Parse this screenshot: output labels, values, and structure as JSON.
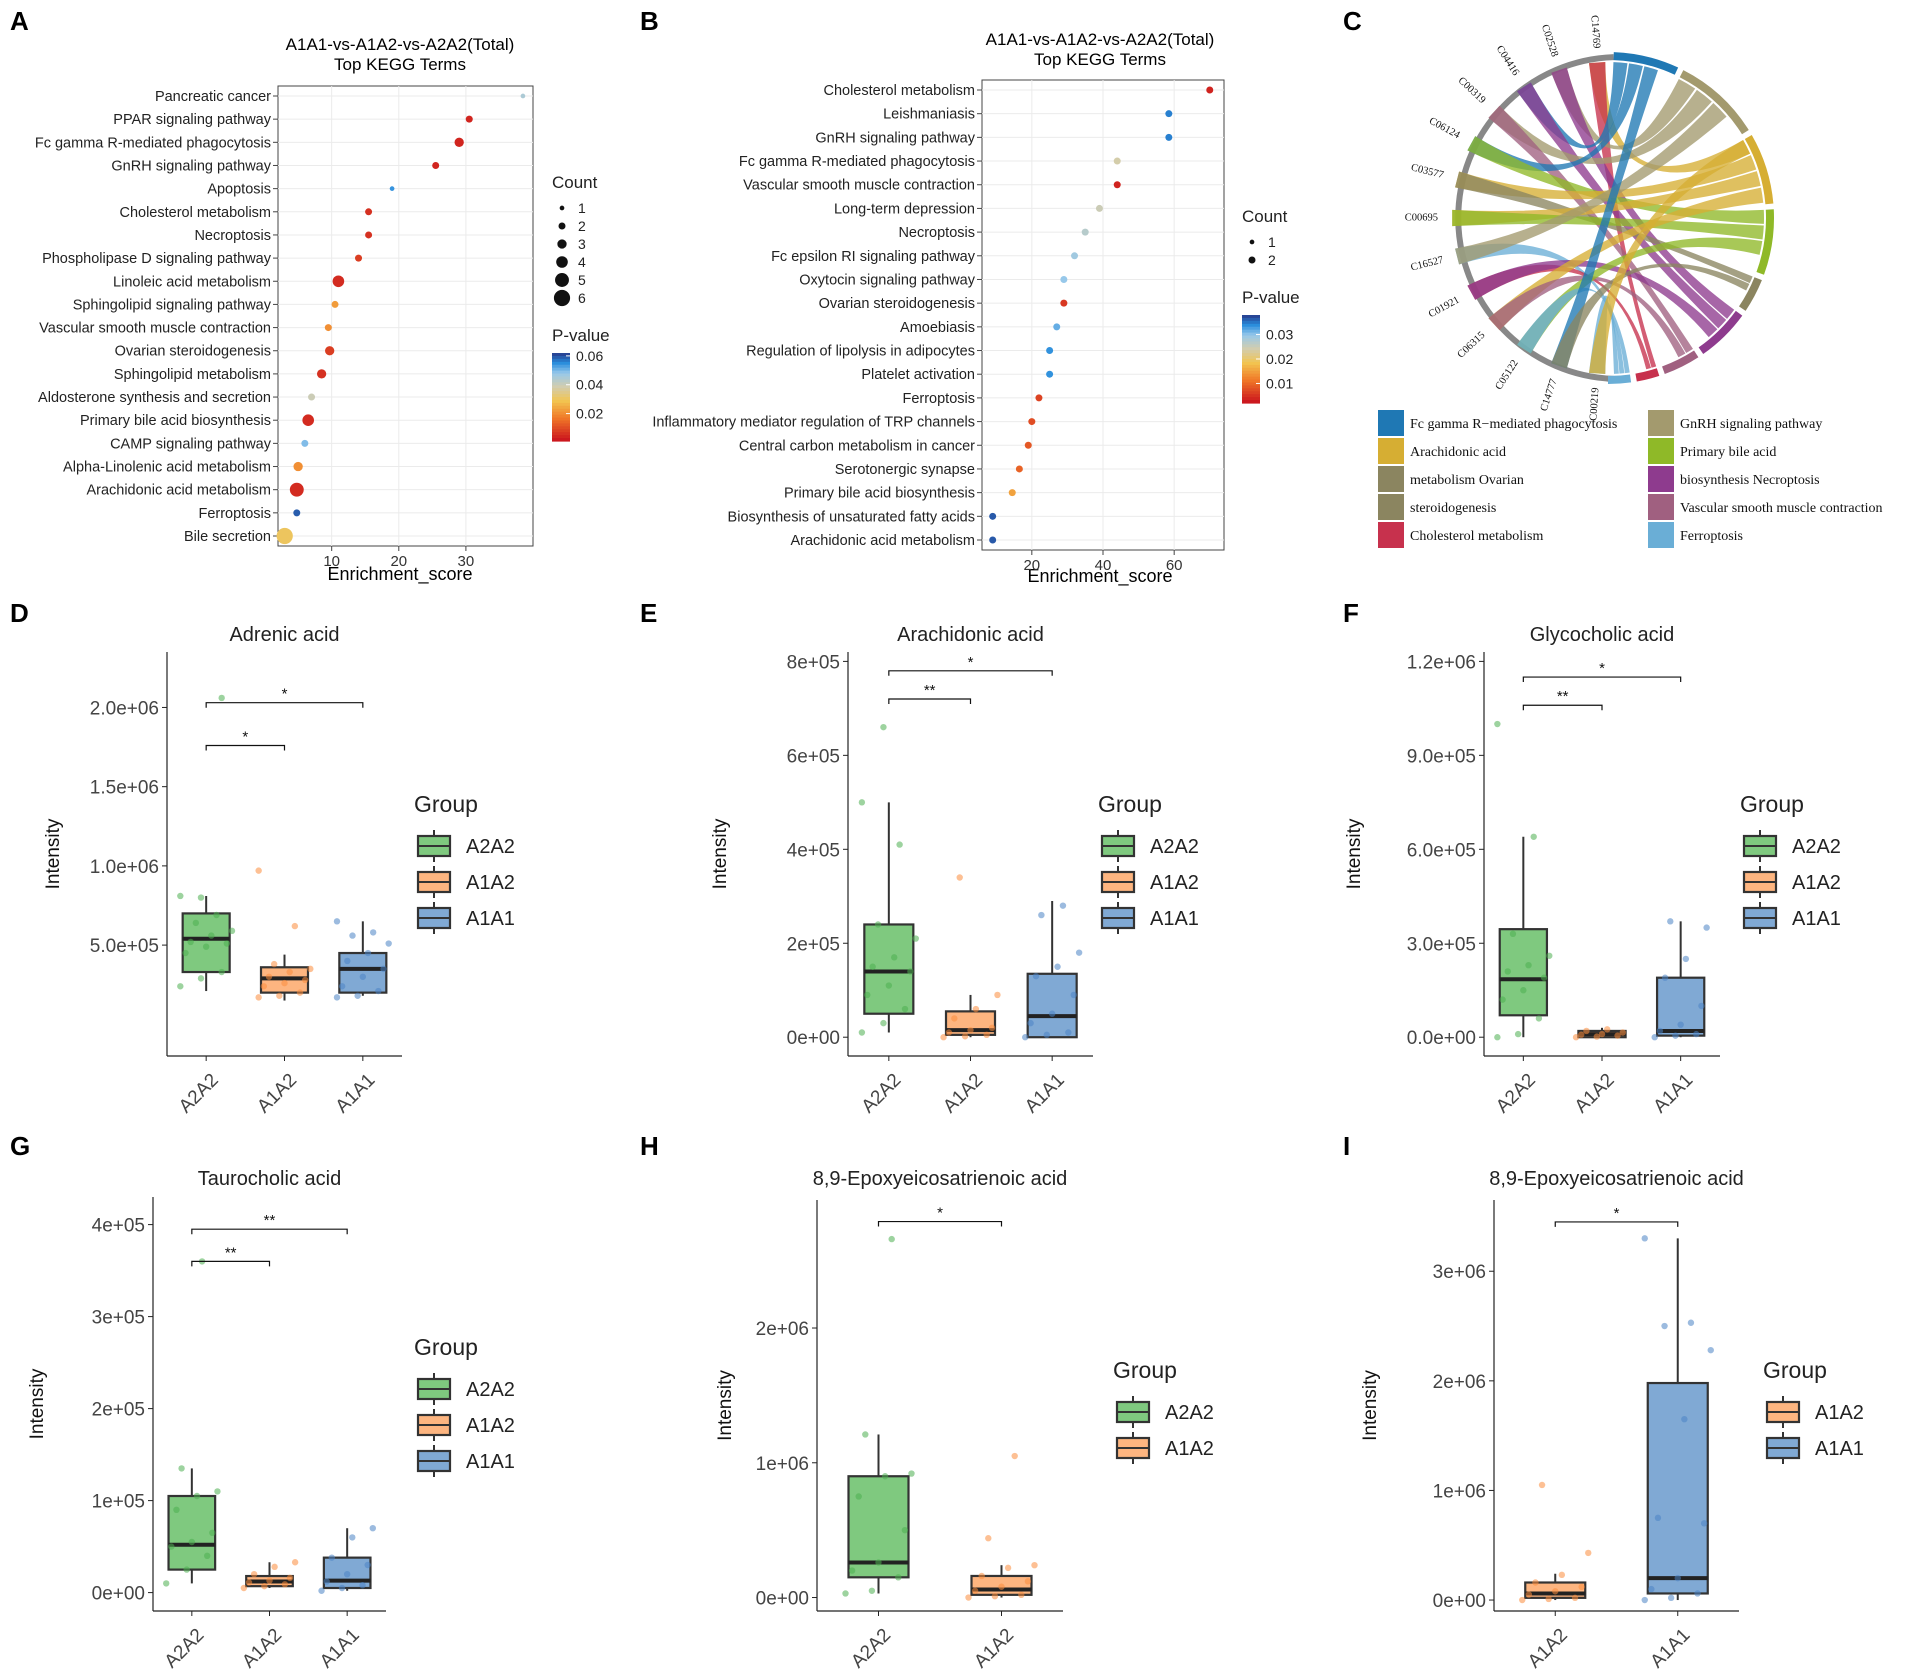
{
  "colors": {
    "A2A2": "#7fc97f",
    "A1A2": "#fdb580",
    "A1A1": "#80a9d4",
    "A2A2_dot": "#4caf50",
    "A1A2_dot": "#fb8c3c",
    "A1A1_dot": "#4a84c4",
    "grid": "#ebebeb",
    "box_line": "#333333",
    "sig": "#000000"
  },
  "chart_data": [
    {
      "panel": "A",
      "type": "scatter",
      "title": "A1A1-vs-A1A2-vs-A2A2(Total)",
      "subtitle": "Top KEGG Terms",
      "xlabel": "Enrichment_score",
      "xlim": [
        2,
        40
      ],
      "xticks": [
        10,
        20,
        30
      ],
      "legend": {
        "count_title": "Count",
        "count_values": [
          1,
          2,
          3,
          4,
          5,
          6
        ],
        "pvalue_title": "P-value",
        "pvalue_ticks": [
          "0.06",
          "0.04",
          "0.02"
        ],
        "pvalue_range": [
          0.001,
          0.062
        ]
      },
      "terms": [
        {
          "name": "Pancreatic cancer",
          "x": 38.5,
          "count": 1,
          "p": 0.045
        },
        {
          "name": "PPAR signaling pathway",
          "x": 30.5,
          "count": 2,
          "p": 0.003
        },
        {
          "name": "Fc gamma R-mediated phagocytosis",
          "x": 29.0,
          "count": 3,
          "p": 0.003
        },
        {
          "name": "GnRH signaling pathway",
          "x": 25.5,
          "count": 2,
          "p": 0.003
        },
        {
          "name": "Apoptosis",
          "x": 19.0,
          "count": 1,
          "p": 0.055
        },
        {
          "name": "Cholesterol metabolism",
          "x": 15.5,
          "count": 2,
          "p": 0.005
        },
        {
          "name": "Necroptosis",
          "x": 15.5,
          "count": 2,
          "p": 0.005
        },
        {
          "name": "Phospholipase D signaling pathway",
          "x": 14.0,
          "count": 2,
          "p": 0.007
        },
        {
          "name": "Linoleic acid metabolism",
          "x": 11.0,
          "count": 4,
          "p": 0.004
        },
        {
          "name": "Sphingolipid signaling pathway",
          "x": 10.5,
          "count": 2,
          "p": 0.022
        },
        {
          "name": "Vascular smooth muscle contraction",
          "x": 9.5,
          "count": 2,
          "p": 0.02
        },
        {
          "name": "Ovarian steroidogenesis",
          "x": 9.7,
          "count": 3,
          "p": 0.007
        },
        {
          "name": "Sphingolipid metabolism",
          "x": 8.5,
          "count": 3,
          "p": 0.005
        },
        {
          "name": "Aldosterone synthesis and secretion",
          "x": 7.0,
          "count": 2,
          "p": 0.04
        },
        {
          "name": "Primary bile acid biosynthesis",
          "x": 6.5,
          "count": 4,
          "p": 0.004
        },
        {
          "name": "CAMP signaling pathway",
          "x": 6.0,
          "count": 2,
          "p": 0.05
        },
        {
          "name": "Alpha-Linolenic acid metabolism",
          "x": 5.0,
          "count": 3,
          "p": 0.02
        },
        {
          "name": "Arachidonic acid metabolism",
          "x": 4.8,
          "count": 5,
          "p": 0.004
        },
        {
          "name": "Ferroptosis",
          "x": 4.8,
          "count": 2,
          "p": 0.06
        },
        {
          "name": "Bile secretion",
          "x": 3.0,
          "count": 6,
          "p": 0.03
        }
      ]
    },
    {
      "panel": "B",
      "type": "scatter",
      "title": "A1A1-vs-A1A2-vs-A2A2(Total)",
      "subtitle": "Top KEGG Terms",
      "xlabel": "Enrichment_score",
      "xlim": [
        6,
        74
      ],
      "xticks": [
        20,
        40,
        60
      ],
      "legend": {
        "count_title": "Count",
        "count_values": [
          1,
          2
        ],
        "pvalue_title": "P-value",
        "pvalue_ticks": [
          "0.03",
          "0.02",
          "0.01"
        ],
        "pvalue_range": [
          0.002,
          0.038
        ]
      },
      "terms": [
        {
          "name": "Cholesterol metabolism",
          "x": 70,
          "count": 2,
          "p": 0.003
        },
        {
          "name": "Leishmaniasis",
          "x": 58.5,
          "count": 2,
          "p": 0.035
        },
        {
          "name": "GnRH signaling pathway",
          "x": 58.5,
          "count": 2,
          "p": 0.035
        },
        {
          "name": "Fc gamma R-mediated phagocytosis",
          "x": 44,
          "count": 2,
          "p": 0.024
        },
        {
          "name": "Vascular smooth muscle contraction",
          "x": 44,
          "count": 2,
          "p": 0.003
        },
        {
          "name": "Long-term depression",
          "x": 39,
          "count": 2,
          "p": 0.025
        },
        {
          "name": "Necroptosis",
          "x": 35,
          "count": 2,
          "p": 0.027
        },
        {
          "name": "Fc epsilon RI signaling pathway",
          "x": 32,
          "count": 2,
          "p": 0.029
        },
        {
          "name": "Oxytocin signaling pathway",
          "x": 29,
          "count": 2,
          "p": 0.03
        },
        {
          "name": "Ovarian steroidogenesis",
          "x": 29,
          "count": 2,
          "p": 0.005
        },
        {
          "name": "Amoebiasis",
          "x": 27,
          "count": 2,
          "p": 0.032
        },
        {
          "name": "Regulation of lipolysis in adipocytes",
          "x": 25,
          "count": 2,
          "p": 0.034
        },
        {
          "name": "Platelet activation",
          "x": 25,
          "count": 2,
          "p": 0.034
        },
        {
          "name": "Ferroptosis",
          "x": 22,
          "count": 2,
          "p": 0.006
        },
        {
          "name": "Inflammatory mediator regulation of TRP channels",
          "x": 20,
          "count": 2,
          "p": 0.007
        },
        {
          "name": "Central carbon metabolism in cancer",
          "x": 19,
          "count": 2,
          "p": 0.008
        },
        {
          "name": "Serotonergic synapse",
          "x": 16.5,
          "count": 2,
          "p": 0.009
        },
        {
          "name": "Primary bile acid biosynthesis",
          "x": 14.5,
          "count": 2,
          "p": 0.015
        },
        {
          "name": "Biosynthesis of unsaturated fatty acids",
          "x": 9,
          "count": 2,
          "p": 0.037
        },
        {
          "name": "Arachidonic acid metabolism",
          "x": 9,
          "count": 2,
          "p": 0.037
        }
      ]
    },
    {
      "panel": "C",
      "type": "chord",
      "compounds": [
        "C14769",
        "C02528",
        "C04416",
        "C00319",
        "C06124",
        "C03577",
        "C00695",
        "C16527",
        "C01921",
        "C06315",
        "C05122",
        "C14777",
        "C00219"
      ],
      "legend": [
        {
          "label": "Fc gamma R−mediated phagocytosis",
          "color": "#1f78b4"
        },
        {
          "label": "GnRH signaling pathway",
          "color": "#a39a6e"
        },
        {
          "label": "Arachidonic acid",
          "color": "#d6ae33"
        },
        {
          "label": "Primary bile acid",
          "color": "#8fb928"
        },
        {
          "label": "metabolism Ovarian",
          "color": "#8b8560"
        },
        {
          "label": "biosynthesis Necroptosis",
          "color": "#8e3b8e"
        },
        {
          "label": "steroidogenesis",
          "color": "#8b8560"
        },
        {
          "label": "Vascular smooth muscle contraction",
          "color": "#a06080"
        },
        {
          "label": "Cholesterol metabolism",
          "color": "#c7314d"
        },
        {
          "label": "Ferroptosis",
          "color": "#6aaed6"
        }
      ]
    },
    {
      "panel": "D",
      "type": "box",
      "title": "Adrenic acid",
      "ylabel": "Intensity",
      "ylim": [
        -200000,
        2350000
      ],
      "yticks": [
        {
          "v": 500000,
          "l": "5.0e+05"
        },
        {
          "v": 1000000,
          "l": "1.0e+06"
        },
        {
          "v": 1500000,
          "l": "1.5e+06"
        },
        {
          "v": 2000000,
          "l": "2.0e+06"
        }
      ],
      "groups": [
        "A2A2",
        "A1A2",
        "A1A1"
      ],
      "boxes": [
        {
          "q1": 330000,
          "med": 540000,
          "q3": 700000,
          "wmin": 210000,
          "wmax": 810000,
          "points": [
            240000,
            290000,
            330000,
            450000,
            490000,
            510000,
            520000,
            560000,
            590000,
            640000,
            690000,
            810000,
            800000,
            2060000
          ]
        },
        {
          "q1": 200000,
          "med": 290000,
          "q3": 360000,
          "wmin": 150000,
          "wmax": 440000,
          "points": [
            170000,
            180000,
            200000,
            240000,
            260000,
            280000,
            300000,
            330000,
            350000,
            380000,
            620000,
            970000
          ]
        },
        {
          "q1": 200000,
          "med": 350000,
          "q3": 450000,
          "wmin": 180000,
          "wmax": 650000,
          "points": [
            170000,
            180000,
            210000,
            240000,
            300000,
            350000,
            400000,
            450000,
            510000,
            560000,
            580000,
            650000
          ]
        }
      ],
      "legend_title": "Group",
      "sig": [
        {
          "a": 0,
          "b": 1,
          "label": "*",
          "y": 1760000
        },
        {
          "a": 0,
          "b": 2,
          "label": "*",
          "y": 2030000
        }
      ]
    },
    {
      "panel": "E",
      "type": "box",
      "title": "Arachidonic acid",
      "ylabel": "Intensity",
      "ylim": [
        -40000,
        820000
      ],
      "yticks": [
        {
          "v": 0,
          "l": "0e+00"
        },
        {
          "v": 200000,
          "l": "2e+05"
        },
        {
          "v": 400000,
          "l": "4e+05"
        },
        {
          "v": 600000,
          "l": "6e+05"
        },
        {
          "v": 800000,
          "l": "8e+05"
        }
      ],
      "groups": [
        "A2A2",
        "A1A2",
        "A1A1"
      ],
      "boxes": [
        {
          "q1": 50000,
          "med": 140000,
          "q3": 240000,
          "wmin": 10000,
          "wmax": 500000,
          "points": [
            10000,
            30000,
            60000,
            90000,
            110000,
            140000,
            150000,
            170000,
            210000,
            240000,
            410000,
            500000,
            660000
          ]
        },
        {
          "q1": 5000,
          "med": 15000,
          "q3": 55000,
          "wmin": 0,
          "wmax": 90000,
          "points": [
            0,
            2000,
            5000,
            10000,
            15000,
            20000,
            40000,
            60000,
            90000,
            340000
          ]
        },
        {
          "q1": 0,
          "med": 45000,
          "q3": 135000,
          "wmin": 0,
          "wmax": 290000,
          "points": [
            0,
            5000,
            10000,
            30000,
            50000,
            90000,
            130000,
            150000,
            180000,
            260000,
            280000
          ]
        }
      ],
      "legend_title": "Group",
      "sig": [
        {
          "a": 0,
          "b": 1,
          "label": "**",
          "y": 720000
        },
        {
          "a": 0,
          "b": 2,
          "label": "*",
          "y": 780000
        }
      ]
    },
    {
      "panel": "F",
      "type": "box",
      "title": "Glycocholic acid",
      "ylabel": "Intensity",
      "ylim": [
        -60000,
        1230000
      ],
      "yticks": [
        {
          "v": 0,
          "l": "0.0e+00"
        },
        {
          "v": 300000,
          "l": "3.0e+05"
        },
        {
          "v": 600000,
          "l": "6.0e+05"
        },
        {
          "v": 900000,
          "l": "9.0e+05"
        },
        {
          "v": 1200000,
          "l": "1.2e+06"
        }
      ],
      "groups": [
        "A2A2",
        "A1A2",
        "A1A1"
      ],
      "boxes": [
        {
          "q1": 70000,
          "med": 185000,
          "q3": 345000,
          "wmin": 0,
          "wmax": 640000,
          "points": [
            0,
            10000,
            60000,
            120000,
            150000,
            190000,
            210000,
            230000,
            260000,
            330000,
            640000,
            1000000
          ]
        },
        {
          "q1": 0,
          "med": 10000,
          "q3": 20000,
          "wmin": 0,
          "wmax": 30000,
          "points": [
            0,
            2000,
            5000,
            8000,
            10000,
            15000,
            20000,
            25000
          ]
        },
        {
          "q1": 5000,
          "med": 20000,
          "q3": 190000,
          "wmin": 0,
          "wmax": 370000,
          "points": [
            0,
            5000,
            10000,
            20000,
            40000,
            100000,
            190000,
            250000,
            350000,
            370000
          ]
        }
      ],
      "legend_title": "Group",
      "sig": [
        {
          "a": 0,
          "b": 1,
          "label": "**",
          "y": 1060000
        },
        {
          "a": 0,
          "b": 2,
          "label": "*",
          "y": 1150000
        }
      ]
    },
    {
      "panel": "G",
      "type": "box",
      "title": "Taurocholic acid",
      "ylabel": "Intensity",
      "ylim": [
        -20000,
        430000
      ],
      "yticks": [
        {
          "v": 0,
          "l": "0e+00"
        },
        {
          "v": 100000,
          "l": "1e+05"
        },
        {
          "v": 200000,
          "l": "2e+05"
        },
        {
          "v": 300000,
          "l": "3e+05"
        },
        {
          "v": 400000,
          "l": "4e+05"
        }
      ],
      "groups": [
        "A2A2",
        "A1A2",
        "A1A1"
      ],
      "boxes": [
        {
          "q1": 25000,
          "med": 52000,
          "q3": 105000,
          "wmin": 10000,
          "wmax": 135000,
          "points": [
            10000,
            25000,
            40000,
            50000,
            55000,
            65000,
            90000,
            105000,
            110000,
            135000,
            360000
          ]
        },
        {
          "q1": 7000,
          "med": 12000,
          "q3": 18000,
          "wmin": 5000,
          "wmax": 33000,
          "points": [
            5000,
            7000,
            9000,
            11000,
            13000,
            16000,
            20000,
            28000,
            33000
          ]
        },
        {
          "q1": 5000,
          "med": 13000,
          "q3": 38000,
          "wmin": 2000,
          "wmax": 70000,
          "points": [
            2000,
            5000,
            8000,
            12000,
            20000,
            30000,
            38000,
            60000,
            70000
          ]
        }
      ],
      "legend_title": "Group",
      "sig": [
        {
          "a": 0,
          "b": 1,
          "label": "**",
          "y": 360000
        },
        {
          "a": 0,
          "b": 2,
          "label": "**",
          "y": 395000
        }
      ]
    },
    {
      "panel": "H",
      "type": "box",
      "title": "8,9-Epoxyeicosatrienoic acid",
      "ylabel": "Intensity",
      "ylim": [
        -100000,
        2950000
      ],
      "yticks": [
        {
          "v": 0,
          "l": "0e+00"
        },
        {
          "v": 1000000,
          "l": "1e+06"
        },
        {
          "v": 2000000,
          "l": "2e+06"
        }
      ],
      "groups": [
        "A2A2",
        "A1A2"
      ],
      "boxes": [
        {
          "q1": 150000,
          "med": 260000,
          "q3": 900000,
          "wmin": 30000,
          "wmax": 1210000,
          "points": [
            30000,
            50000,
            150000,
            200000,
            260000,
            500000,
            750000,
            900000,
            920000,
            1210000,
            2660000
          ]
        },
        {
          "q1": 20000,
          "med": 60000,
          "q3": 160000,
          "wmin": 0,
          "wmax": 240000,
          "points": [
            0,
            10000,
            20000,
            50000,
            80000,
            120000,
            160000,
            220000,
            240000,
            440000,
            1050000
          ]
        }
      ],
      "legend_title": "Group",
      "sig": [
        {
          "a": 0,
          "b": 1,
          "label": "*",
          "y": 2790000
        }
      ]
    },
    {
      "panel": "I",
      "type": "box",
      "title": "8,9-Epoxyeicosatrienoic acid",
      "ylabel": "Intensity",
      "ylim": [
        -100000,
        3650000
      ],
      "yticks": [
        {
          "v": 0,
          "l": "0e+00"
        },
        {
          "v": 1000000,
          "l": "1e+06"
        },
        {
          "v": 2000000,
          "l": "2e+06"
        },
        {
          "v": 3000000,
          "l": "3e+06"
        }
      ],
      "groups": [
        "A1A2",
        "A1A1"
      ],
      "boxes": [
        {
          "q1": 20000,
          "med": 60000,
          "q3": 160000,
          "wmin": 0,
          "wmax": 240000,
          "points": [
            0,
            10000,
            20000,
            50000,
            80000,
            120000,
            160000,
            230000,
            430000,
            1050000
          ]
        },
        {
          "q1": 60000,
          "med": 200000,
          "q3": 1980000,
          "wmin": 0,
          "wmax": 3300000,
          "points": [
            0,
            20000,
            60000,
            100000,
            200000,
            700000,
            750000,
            1650000,
            2280000,
            2500000,
            2530000,
            3300000
          ]
        }
      ],
      "legend_title": "Group",
      "sig": [
        {
          "a": 0,
          "b": 1,
          "label": "*",
          "y": 3450000
        }
      ]
    }
  ]
}
